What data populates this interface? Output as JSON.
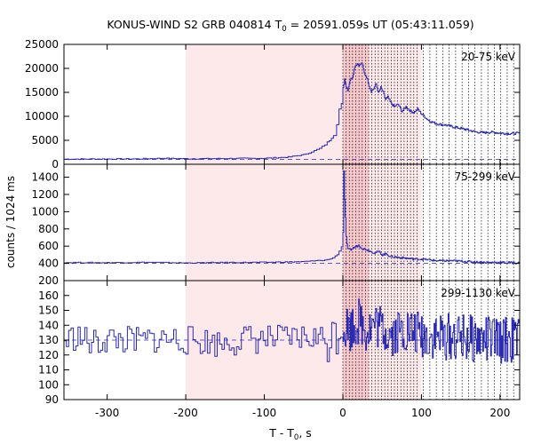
{
  "chart_data": {
    "type": "line",
    "title": "KONUS-WIND S2 GRB 040814 T",
    "title_sub": "0",
    "title_rest": " = 20591.059s UT (05:43:11.059)",
    "xlabel": "T - T",
    "xlabel_sub": "0",
    "xlabel_rest": ", s",
    "ylabel": "counts / 1024 ms",
    "xlim": [
      -355,
      225
    ],
    "x_ticks": [
      -300,
      -200,
      -100,
      0,
      100,
      200
    ],
    "x_tick_labels": [
      "-300",
      "-200",
      "-100",
      "0",
      "100",
      "200"
    ],
    "shaded_intervals": [
      {
        "x": [
          -200,
          0
        ],
        "color": "#fde9e9"
      },
      {
        "x": [
          0,
          33
        ],
        "color": "#f6c8cb"
      },
      {
        "x": [
          33,
          100
        ],
        "color": "#fde9e9"
      }
    ],
    "time_markers_dense_start": 0,
    "time_markers_dense_step": 4.1,
    "time_markers_dense_end": 98,
    "time_markers_sparse_step": 8.2,
    "time_markers_end": 225,
    "line_color": "#2a2ab5",
    "panels": [
      {
        "energy_label": "20-75 keV",
        "ylim": [
          0,
          25000
        ],
        "y_ticks": [
          0,
          5000,
          10000,
          15000,
          20000,
          25000
        ],
        "y_tick_labels": [
          "0",
          "5000",
          "10000",
          "15000",
          "20000",
          "25000"
        ],
        "background_level": 1000,
        "series": [
          {
            "values": [
              [
                -355,
                1080
              ],
              [
                -300,
                1100
              ],
              [
                -260,
                1120
              ],
              [
                -230,
                1250
              ],
              [
                -200,
                1150
              ],
              [
                -150,
                1200
              ],
              [
                -100,
                1250
              ],
              [
                -70,
                1500
              ],
              [
                -50,
                2000
              ],
              [
                -40,
                2600
              ],
              [
                -30,
                3300
              ],
              [
                -20,
                4500
              ],
              [
                -12,
                6200
              ],
              [
                -8,
                8500
              ],
              [
                -5,
                11500
              ],
              [
                -2,
                12500
              ],
              [
                0,
                15800
              ],
              [
                2,
                17800
              ],
              [
                4,
                16200
              ],
              [
                6,
                15500
              ],
              [
                9,
                17600
              ],
              [
                12,
                18200
              ],
              [
                15,
                20500
              ],
              [
                18,
                21000
              ],
              [
                21,
                20600
              ],
              [
                24,
                21200
              ],
              [
                27,
                19000
              ],
              [
                30,
                18200
              ],
              [
                33,
                16500
              ],
              [
                36,
                15200
              ],
              [
                39,
                15800
              ],
              [
                42,
                16800
              ],
              [
                45,
                14800
              ],
              [
                48,
                16000
              ],
              [
                51,
                15000
              ],
              [
                54,
                13500
              ],
              [
                57,
                14000
              ],
              [
                60,
                13000
              ],
              [
                65,
                12000
              ],
              [
                70,
                12500
              ],
              [
                75,
                11000
              ],
              [
                80,
                12000
              ],
              [
                85,
                11200
              ],
              [
                90,
                10800
              ],
              [
                95,
                11500
              ],
              [
                100,
                10500
              ],
              [
                110,
                9000
              ],
              [
                120,
                8400
              ],
              [
                130,
                8200
              ],
              [
                140,
                7800
              ],
              [
                150,
                7500
              ],
              [
                160,
                7100
              ],
              [
                170,
                6700
              ],
              [
                180,
                6600
              ],
              [
                190,
                6700
              ],
              [
                200,
                6500
              ],
              [
                210,
                6400
              ],
              [
                225,
                6500
              ]
            ]
          }
        ]
      },
      {
        "energy_label": "75-299 keV",
        "ylim": [
          200,
          1550
        ],
        "y_ticks": [
          200,
          400,
          600,
          800,
          1000,
          1200,
          1400
        ],
        "y_tick_labels": [
          "200",
          "400",
          "600",
          "800",
          "1000",
          "1200",
          "1400"
        ],
        "background_level": 400,
        "series": [
          {
            "values": [
              [
                -355,
                410
              ],
              [
                -300,
                408
              ],
              [
                -250,
                412
              ],
              [
                -200,
                405
              ],
              [
                -150,
                410
              ],
              [
                -100,
                412
              ],
              [
                -50,
                420
              ],
              [
                -20,
                440
              ],
              [
                -10,
                480
              ],
              [
                -5,
                540
              ],
              [
                -2,
                600
              ],
              [
                0,
                760
              ],
              [
                1,
                1470
              ],
              [
                2,
                1150
              ],
              [
                4,
                700
              ],
              [
                6,
                560
              ],
              [
                10,
                560
              ],
              [
                15,
                590
              ],
              [
                20,
                610
              ],
              [
                25,
                570
              ],
              [
                30,
                560
              ],
              [
                35,
                540
              ],
              [
                40,
                520
              ],
              [
                45,
                540
              ],
              [
                50,
                500
              ],
              [
                55,
                510
              ],
              [
                60,
                480
              ],
              [
                70,
                470
              ],
              [
                80,
                460
              ],
              [
                90,
                450
              ],
              [
                100,
                450
              ],
              [
                120,
                430
              ],
              [
                140,
                430
              ],
              [
                160,
                420
              ],
              [
                180,
                410
              ],
              [
                200,
                410
              ],
              [
                225,
                405
              ]
            ]
          }
        ]
      },
      {
        "energy_label": "299-1130 keV",
        "ylim": [
          90,
          170
        ],
        "y_ticks": [
          90,
          100,
          110,
          120,
          130,
          140,
          150,
          160
        ],
        "y_tick_labels": [
          "90",
          "100",
          "110",
          "120",
          "130",
          "140",
          "150",
          "160"
        ],
        "background_level": 130,
        "series": [
          {
            "values": [
              [
                -355,
                129
              ],
              [
                -340,
                133
              ],
              [
                -320,
                127
              ],
              [
                -300,
                131
              ],
              [
                -280,
                130
              ],
              [
                -260,
                129
              ],
              [
                -240,
                131
              ],
              [
                -200,
                130
              ],
              [
                -160,
                128
              ],
              [
                -120,
                131
              ],
              [
                -80,
                130
              ],
              [
                -40,
                132
              ],
              [
                -20,
                130
              ],
              [
                0,
                140
              ],
              [
                10,
                138
              ],
              [
                20,
                143
              ],
              [
                30,
                137
              ],
              [
                40,
                141
              ],
              [
                60,
                135
              ],
              [
                80,
                137
              ],
              [
                100,
                133
              ],
              [
                130,
                132
              ],
              [
                160,
                131
              ],
              [
                190,
                130
              ],
              [
                225,
                130
              ]
            ]
          }
        ]
      }
    ]
  }
}
